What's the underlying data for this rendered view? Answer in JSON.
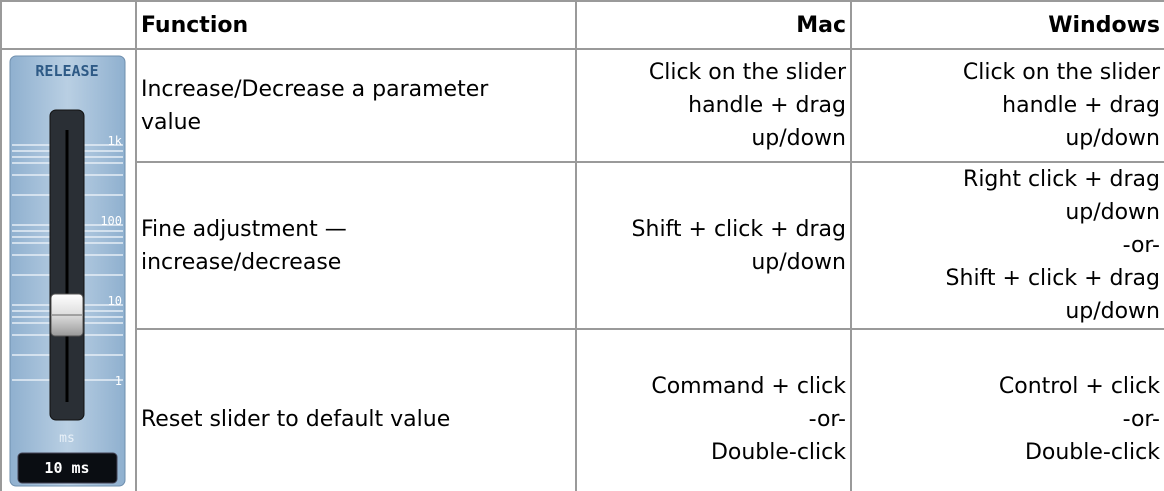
{
  "table": {
    "header": {
      "function": "Function",
      "mac": "Mac",
      "windows": "Windows"
    },
    "slider": {
      "label": "RELEASE",
      "scale": [
        "1k",
        "100",
        "10",
        "1"
      ],
      "unit": "ms",
      "readout": "10 ms"
    },
    "rows": [
      {
        "function": [
          "Increase/Decrease a parameter",
          "value"
        ],
        "mac": [
          "Click on the slider",
          "handle + drag",
          "up/down"
        ],
        "windows": [
          "Click on the slider",
          "handle + drag",
          "up/down"
        ]
      },
      {
        "function": [
          "Fine adjustment —",
          "increase/decrease"
        ],
        "mac": [
          "Shift + click + drag",
          "up/down"
        ],
        "windows": [
          "Right click + drag",
          "up/down",
          "-or-",
          "Shift + click + drag",
          "up/down"
        ]
      },
      {
        "function": [
          "Reset slider to default value"
        ],
        "mac": [
          "Command + click",
          "-or-",
          "Double-click"
        ],
        "windows": [
          "Control + click",
          "-or-",
          "Double-click"
        ]
      }
    ]
  }
}
